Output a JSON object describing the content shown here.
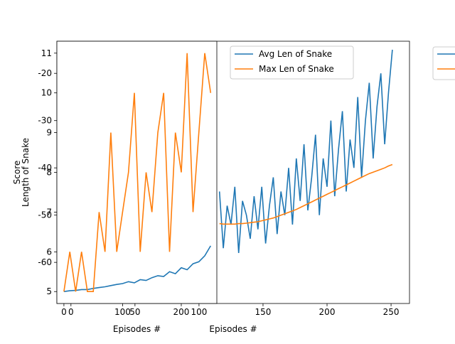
{
  "chart_data": [
    {
      "type": "line",
      "xlabel": "Episodes #",
      "ylabel": "Score",
      "xlim": [
        -11,
        264.4
      ],
      "ylim": [
        -68.7,
        -13.2
      ],
      "xticks": [
        0,
        50,
        100,
        150,
        200,
        250
      ],
      "yticks": [
        -20,
        -30,
        -40,
        -50,
        -60
      ],
      "legend": "best",
      "x": [
        116,
        119,
        122,
        125,
        128,
        131,
        134,
        137,
        140,
        143,
        146,
        149,
        152,
        155,
        158,
        161,
        164,
        167,
        170,
        173,
        176,
        179,
        182,
        185,
        188,
        191,
        194,
        197,
        200,
        203,
        206,
        209,
        212,
        215,
        218,
        221,
        224,
        227,
        230,
        233,
        236,
        239,
        242,
        245,
        248,
        251
      ],
      "series": [
        {
          "name": "Avg Len of Snake",
          "color": "#1f77b4",
          "values": [
            -45,
            -57,
            -48,
            -52,
            -44,
            -58,
            -47,
            -50,
            -55,
            -46,
            -53,
            -44,
            -56,
            -48,
            -42,
            -54,
            -45,
            -50,
            -40,
            -52,
            -38,
            -47,
            -35,
            -49,
            -42,
            -33,
            -50,
            -38,
            -44,
            -30,
            -46,
            -36,
            -28,
            -45,
            -34,
            -40,
            -25,
            -42,
            -30,
            -22,
            -38,
            -27,
            -20,
            -35,
            -24,
            -15
          ]
        },
        {
          "name": "Max Len of Snake",
          "color": "#ff7f0e",
          "values": [
            -51.8,
            -51.9,
            -51.9,
            -51.9,
            -51.9,
            -51.8,
            -51.8,
            -51.7,
            -51.6,
            -51.5,
            -51.4,
            -51.2,
            -51.0,
            -50.8,
            -50.6,
            -50.3,
            -50.0,
            -49.7,
            -49.4,
            -49.1,
            -48.8,
            -48.4,
            -48.0,
            -47.6,
            -47.2,
            -46.8,
            -46.4,
            -46.0,
            -45.6,
            -45.2,
            -44.8,
            -44.4,
            -44.0,
            -43.6,
            -43.2,
            -42.8,
            -42.4,
            -42.0,
            -41.6,
            -41.2,
            -40.9,
            -40.6,
            -40.3,
            -40.0,
            -39.6,
            -39.3
          ]
        }
      ]
    },
    {
      "type": "line",
      "xlabel": "Episodes #",
      "ylabel": "Length of Snake",
      "xlim": [
        -12,
        260.6
      ],
      "ylim": [
        4.7,
        11.3
      ],
      "xticks": [
        0,
        100,
        200
      ],
      "yticks": [
        5,
        6,
        7,
        8,
        9,
        10,
        11
      ],
      "x": [
        0,
        10,
        20,
        30,
        40,
        50,
        60,
        70,
        80,
        90,
        100,
        110,
        120,
        130,
        140,
        150,
        160,
        170,
        180,
        190,
        200,
        210,
        220,
        230,
        240,
        250
      ],
      "series": [
        {
          "color": "#1f77b4",
          "values": [
            5.0,
            5.02,
            5.03,
            5.05,
            5.05,
            5.08,
            5.1,
            5.12,
            5.15,
            5.18,
            5.2,
            5.25,
            5.22,
            5.3,
            5.28,
            5.35,
            5.4,
            5.38,
            5.5,
            5.45,
            5.6,
            5.55,
            5.7,
            5.75,
            5.9,
            6.15
          ]
        },
        {
          "color": "#ff7f0e",
          "values": [
            5,
            6,
            5,
            6,
            5,
            5,
            7,
            6,
            9,
            6,
            7,
            8,
            10,
            6,
            8,
            7,
            9,
            10,
            6,
            9,
            8,
            11,
            7,
            9,
            11,
            10
          ]
        }
      ]
    }
  ]
}
